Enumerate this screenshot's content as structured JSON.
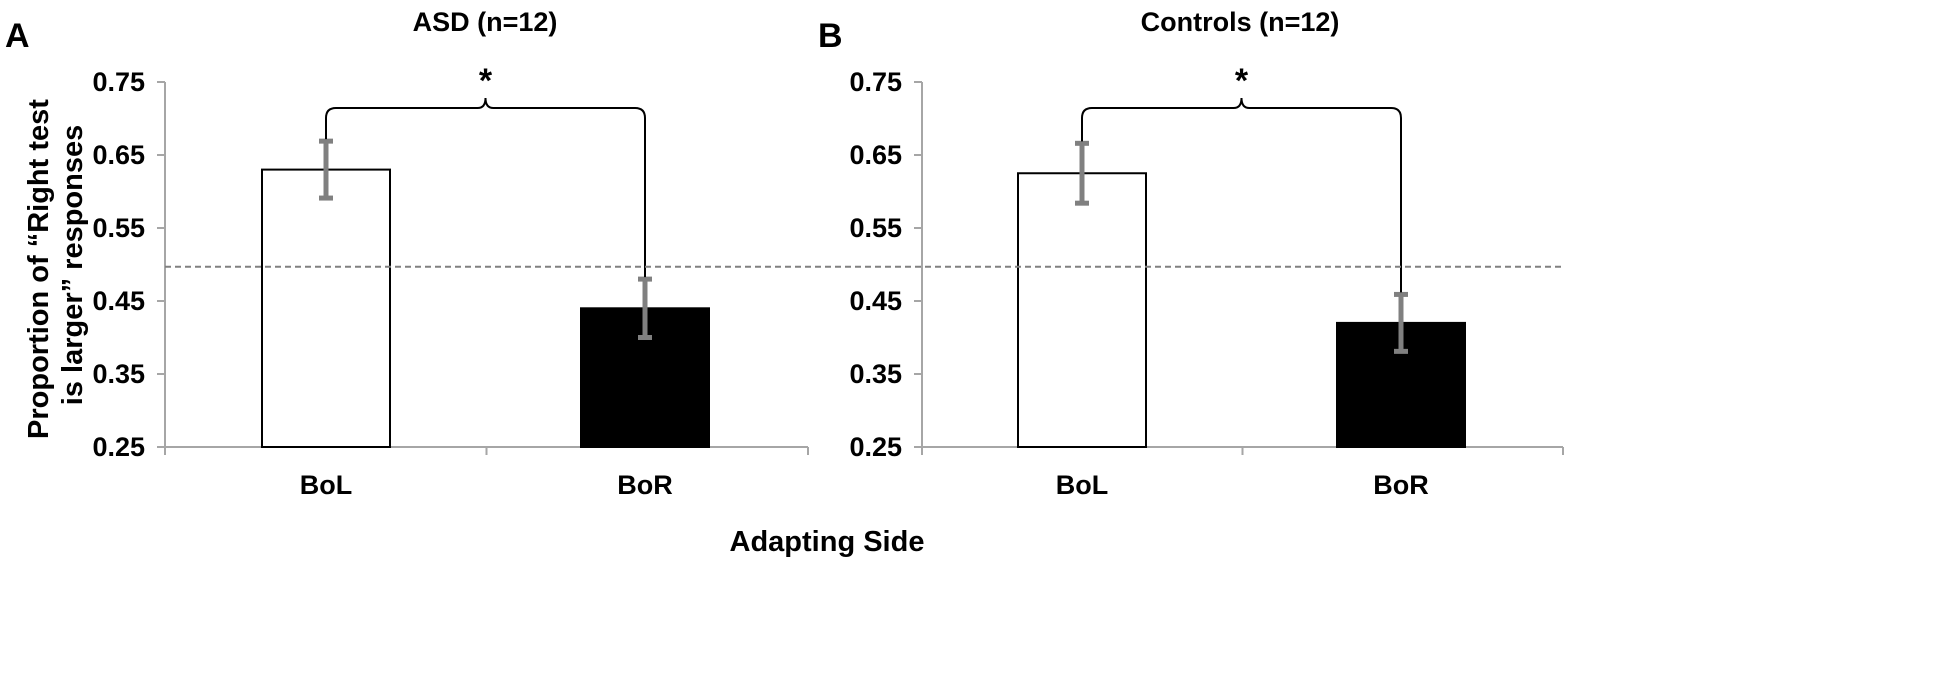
{
  "figure": {
    "ylabel_line1": "Proportion of “Right test",
    "ylabel_line2": "is larger” responses",
    "xlabel": "Adapting Side",
    "colors": {
      "bol": "#ffffff",
      "bor": "#000000",
      "error": "#808080",
      "reference": "#808080",
      "axis": "#a6a6a6"
    }
  },
  "chart_data": [
    {
      "type": "bar",
      "panel": "A",
      "title": "ASD (n=12)",
      "categories": [
        "BoL",
        "BoR"
      ],
      "values": [
        0.63,
        0.44
      ],
      "errors": [
        0.039,
        0.04
      ],
      "ylim": [
        0.25,
        0.75
      ],
      "yticks": [
        "0.25",
        "0.35",
        "0.45",
        "0.55",
        "0.65",
        "0.75"
      ],
      "reference_line": 0.497,
      "significance": "*",
      "grid": false
    },
    {
      "type": "bar",
      "panel": "B",
      "title": "Controls (n=12)",
      "categories": [
        "BoL",
        "BoR"
      ],
      "values": [
        0.625,
        0.42
      ],
      "errors": [
        0.041,
        0.039
      ],
      "ylim": [
        0.25,
        0.75
      ],
      "yticks": [
        "0.25",
        "0.35",
        "0.45",
        "0.55",
        "0.65",
        "0.75"
      ],
      "reference_line": 0.497,
      "significance": "*",
      "grid": false
    }
  ]
}
